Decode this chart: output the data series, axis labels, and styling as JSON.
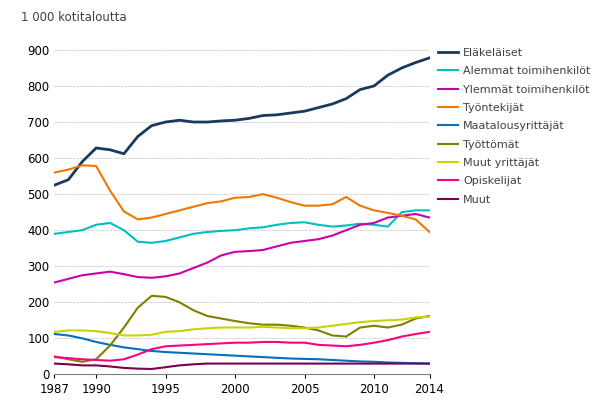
{
  "ylabel": "1 000 kotitaloutta",
  "xlim": [
    1987,
    2014
  ],
  "ylim": [
    0,
    900
  ],
  "yticks": [
    0,
    100,
    200,
    300,
    400,
    500,
    600,
    700,
    800,
    900
  ],
  "xticks": [
    1987,
    1990,
    1995,
    2000,
    2005,
    2010,
    2014
  ],
  "series": [
    {
      "label": "Eläkeläiset",
      "color": "#1a3a5c",
      "linewidth": 2.0,
      "data": {
        "1987": 525,
        "1988": 540,
        "1989": 590,
        "1990": 628,
        "1991": 623,
        "1992": 612,
        "1993": 660,
        "1994": 690,
        "1995": 700,
        "1996": 705,
        "1997": 700,
        "1998": 700,
        "1999": 703,
        "2000": 705,
        "2001": 710,
        "2002": 718,
        "2003": 720,
        "2004": 725,
        "2005": 730,
        "2006": 740,
        "2007": 750,
        "2008": 765,
        "2009": 790,
        "2010": 800,
        "2011": 830,
        "2012": 850,
        "2013": 865,
        "2014": 878
      }
    },
    {
      "label": "Alemmat toimihenkilöt",
      "color": "#00bfbf",
      "linewidth": 1.5,
      "data": {
        "1987": 390,
        "1988": 395,
        "1989": 400,
        "1990": 415,
        "1991": 420,
        "1992": 400,
        "1993": 368,
        "1994": 365,
        "1995": 370,
        "1996": 380,
        "1997": 390,
        "1998": 395,
        "1999": 398,
        "2000": 400,
        "2001": 405,
        "2002": 408,
        "2003": 415,
        "2004": 420,
        "2005": 422,
        "2006": 415,
        "2007": 410,
        "2008": 413,
        "2009": 418,
        "2010": 415,
        "2011": 410,
        "2012": 450,
        "2013": 455,
        "2014": 455
      }
    },
    {
      "label": "Ylemmät toimihenkilöt",
      "color": "#cc00aa",
      "linewidth": 1.5,
      "data": {
        "1987": 255,
        "1988": 265,
        "1989": 275,
        "1990": 280,
        "1991": 285,
        "1992": 278,
        "1993": 270,
        "1994": 268,
        "1995": 272,
        "1996": 280,
        "1997": 295,
        "1998": 310,
        "1999": 330,
        "2000": 340,
        "2001": 342,
        "2002": 345,
        "2003": 355,
        "2004": 365,
        "2005": 370,
        "2006": 375,
        "2007": 385,
        "2008": 400,
        "2009": 415,
        "2010": 420,
        "2011": 435,
        "2012": 440,
        "2013": 445,
        "2014": 435
      }
    },
    {
      "label": "Työntekijät",
      "color": "#f07800",
      "linewidth": 1.5,
      "data": {
        "1987": 560,
        "1988": 568,
        "1989": 580,
        "1990": 578,
        "1991": 510,
        "1992": 452,
        "1993": 430,
        "1994": 435,
        "1995": 445,
        "1996": 455,
        "1997": 465,
        "1998": 475,
        "1999": 480,
        "2000": 490,
        "2001": 492,
        "2002": 500,
        "2003": 490,
        "2004": 478,
        "2005": 468,
        "2006": 468,
        "2007": 472,
        "2008": 492,
        "2009": 468,
        "2010": 455,
        "2011": 448,
        "2012": 440,
        "2013": 430,
        "2014": 395
      }
    },
    {
      "label": "Maatalousyrittäjät",
      "color": "#0070c0",
      "linewidth": 1.5,
      "data": {
        "1987": 112,
        "1988": 108,
        "1989": 100,
        "1990": 90,
        "1991": 82,
        "1992": 75,
        "1993": 70,
        "1994": 65,
        "1995": 62,
        "1996": 60,
        "1997": 58,
        "1998": 56,
        "1999": 54,
        "2000": 52,
        "2001": 50,
        "2002": 48,
        "2003": 46,
        "2004": 44,
        "2005": 43,
        "2006": 42,
        "2007": 40,
        "2008": 38,
        "2009": 36,
        "2010": 35,
        "2011": 33,
        "2012": 32,
        "2013": 31,
        "2014": 30
      }
    },
    {
      "label": "Työttömät",
      "color": "#808000",
      "linewidth": 1.5,
      "data": {
        "1987": 50,
        "1988": 42,
        "1989": 35,
        "1990": 42,
        "1991": 80,
        "1992": 130,
        "1993": 185,
        "1994": 218,
        "1995": 215,
        "1996": 200,
        "1997": 178,
        "1998": 162,
        "1999": 155,
        "2000": 148,
        "2001": 142,
        "2002": 138,
        "2003": 138,
        "2004": 135,
        "2005": 130,
        "2006": 122,
        "2007": 108,
        "2008": 105,
        "2009": 130,
        "2010": 135,
        "2011": 130,
        "2012": 138,
        "2013": 155,
        "2014": 162
      }
    },
    {
      "label": "Muut yrittäjät",
      "color": "#c8d400",
      "linewidth": 1.5,
      "data": {
        "1987": 118,
        "1988": 122,
        "1989": 122,
        "1990": 120,
        "1991": 115,
        "1992": 108,
        "1993": 108,
        "1994": 110,
        "1995": 118,
        "1996": 120,
        "1997": 125,
        "1998": 128,
        "1999": 130,
        "2000": 130,
        "2001": 130,
        "2002": 132,
        "2003": 130,
        "2004": 128,
        "2005": 128,
        "2006": 130,
        "2007": 135,
        "2008": 140,
        "2009": 145,
        "2010": 148,
        "2011": 150,
        "2012": 152,
        "2013": 158,
        "2014": 160
      }
    },
    {
      "label": "Opiskelijat",
      "color": "#ff0080",
      "linewidth": 1.5,
      "data": {
        "1987": 48,
        "1988": 45,
        "1989": 42,
        "1990": 40,
        "1991": 38,
        "1992": 42,
        "1993": 55,
        "1994": 70,
        "1995": 78,
        "1996": 80,
        "1997": 82,
        "1998": 84,
        "1999": 86,
        "2000": 88,
        "2001": 88,
        "2002": 90,
        "2003": 90,
        "2004": 88,
        "2005": 88,
        "2006": 82,
        "2007": 80,
        "2008": 78,
        "2009": 82,
        "2010": 88,
        "2011": 95,
        "2012": 105,
        "2013": 112,
        "2014": 118
      }
    },
    {
      "label": "Muut",
      "color": "#7b0050",
      "linewidth": 1.5,
      "data": {
        "1987": 30,
        "1988": 28,
        "1989": 25,
        "1990": 25,
        "1991": 22,
        "1992": 18,
        "1993": 16,
        "1994": 15,
        "1995": 20,
        "1996": 25,
        "1997": 28,
        "1998": 30,
        "1999": 30,
        "2000": 30,
        "2001": 30,
        "2002": 30,
        "2003": 30,
        "2004": 30,
        "2005": 30,
        "2006": 30,
        "2007": 30,
        "2008": 30,
        "2009": 30,
        "2010": 30,
        "2011": 30,
        "2012": 30,
        "2013": 30,
        "2014": 30
      }
    }
  ],
  "background_color": "#ffffff",
  "grid_color": "#b0b0b0",
  "legend_fontsize": 8.0,
  "axis_fontsize": 8.5,
  "ylabel_fontsize": 8.5
}
